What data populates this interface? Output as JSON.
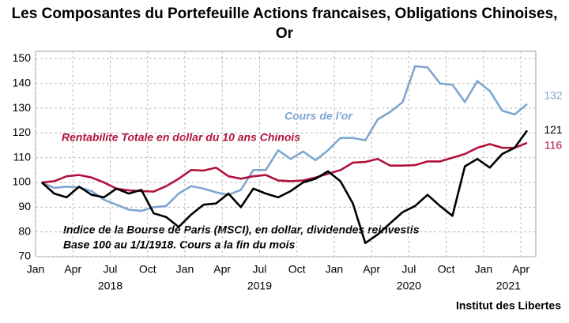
{
  "chart_data": {
    "type": "line",
    "title": [
      "Les Composantes du Portefeuille Actions francaises, Obligations Chinoises,",
      "Or"
    ],
    "x": [
      0,
      1,
      2,
      3,
      4,
      5,
      6,
      7,
      8,
      9,
      10,
      11,
      12,
      13,
      14,
      15,
      16,
      17,
      18,
      19,
      20,
      21,
      22,
      23,
      24,
      25,
      26,
      27,
      28,
      29,
      30,
      31,
      32,
      33,
      34,
      35,
      36,
      37,
      38,
      39
    ],
    "xlim": [
      -0.5,
      39.7
    ],
    "xticks": [
      {
        "value": -0.5,
        "label": "Jan"
      },
      {
        "value": 2.5,
        "label": "Apr"
      },
      {
        "value": 5.5,
        "label": "Jul"
      },
      {
        "value": 8.5,
        "label": "Oct"
      },
      {
        "value": 11.5,
        "label": "Jan"
      },
      {
        "value": 14.5,
        "label": "Apr"
      },
      {
        "value": 17.5,
        "label": "Jul"
      },
      {
        "value": 20.5,
        "label": "Oct"
      },
      {
        "value": 23.5,
        "label": "Jan"
      },
      {
        "value": 26.5,
        "label": "Apr"
      },
      {
        "value": 29.5,
        "label": "Jul"
      },
      {
        "value": 32.5,
        "label": "Oct"
      },
      {
        "value": 35.5,
        "label": "Jan"
      },
      {
        "value": 38.5,
        "label": "Apr"
      }
    ],
    "year_labels": [
      {
        "value": 5.5,
        "label": "2018"
      },
      {
        "value": 17.5,
        "label": "2019"
      },
      {
        "value": 29.5,
        "label": "2020"
      },
      {
        "value": 37.5,
        "label": "2021"
      }
    ],
    "ylim": [
      70,
      153
    ],
    "yticks": [
      70,
      80,
      90,
      100,
      110,
      120,
      130,
      140,
      150
    ],
    "grid": true,
    "series": [
      {
        "name": "Cours de l'or",
        "color": "#7ea6d0",
        "values": [
          100,
          97.8,
          98.3,
          98,
          96.5,
          93,
          91,
          89,
          88.5,
          90,
          90.5,
          95.5,
          98.5,
          97.5,
          96,
          95,
          97,
          105,
          105,
          113,
          109.5,
          112.5,
          109,
          113,
          118,
          118,
          117,
          125.5,
          128.5,
          132.5,
          147,
          146.5,
          140,
          139.5,
          132.5,
          141,
          137,
          129,
          127.5,
          131.7
        ],
        "end_label": "132"
      },
      {
        "name": "Rentabilite Totale en dollar du 10 ans Chinois",
        "color": "#b0123b",
        "values": [
          100,
          100.5,
          102.5,
          103,
          102,
          100,
          97.5,
          96.8,
          96.5,
          96.3,
          98.5,
          101.5,
          105,
          104.8,
          106,
          102.5,
          101.5,
          102.5,
          103,
          100.8,
          100.5,
          100.8,
          102,
          103.5,
          105,
          108,
          108.3,
          109.5,
          106.8,
          106.8,
          107,
          108.5,
          108.5,
          110,
          111.5,
          114,
          115.5,
          114,
          114,
          116
        ],
        "end_label": "116"
      },
      {
        "name": "Indice de la Bourse de Paris (MSCI), en dollar, dividendes reinvestis",
        "color": "#000000",
        "values": [
          100,
          95.5,
          94,
          98.3,
          95,
          94,
          97.5,
          95.5,
          97,
          87.5,
          86,
          82,
          87,
          91,
          91.5,
          95.5,
          90,
          97.5,
          95.5,
          94,
          96.5,
          100,
          101.5,
          104.5,
          100.5,
          91.5,
          75.5,
          79,
          83.5,
          88,
          90.5,
          95,
          90.5,
          86.5,
          106.5,
          109.5,
          106,
          111.5,
          114,
          121
        ],
        "end_label": "121"
      }
    ],
    "note": "Base 100 au 1/1/1918. Cours a la fin du mois",
    "source": "Institut des Libertes"
  }
}
